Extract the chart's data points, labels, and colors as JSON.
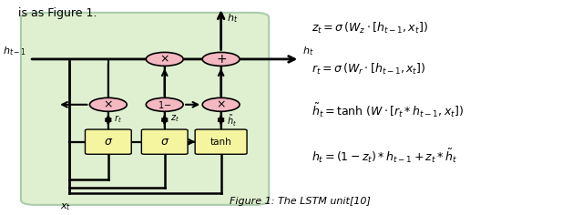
{
  "title": "Figure 1: The LSTM unit[10]",
  "eq1": "$z_t = \\sigma\\,(W_z \\cdot [h_{t-1}, x_t])$",
  "eq2": "$r_t = \\sigma\\,(W_r \\cdot [h_{t-1}, x_t])$",
  "eq3": "$\\tilde{h}_t = \\tanh\\,(W \\cdot [r_t * h_{t-1}, x_t])$",
  "eq4": "$h_t = (1 - z_t) * h_{t-1} + z_t * \\tilde{h}_t$",
  "circle_color": "#f4b8c1",
  "box_color": "#f5f5a0",
  "diagram_bg": "#dff0d0",
  "diagram_edge": "#aaccaa"
}
